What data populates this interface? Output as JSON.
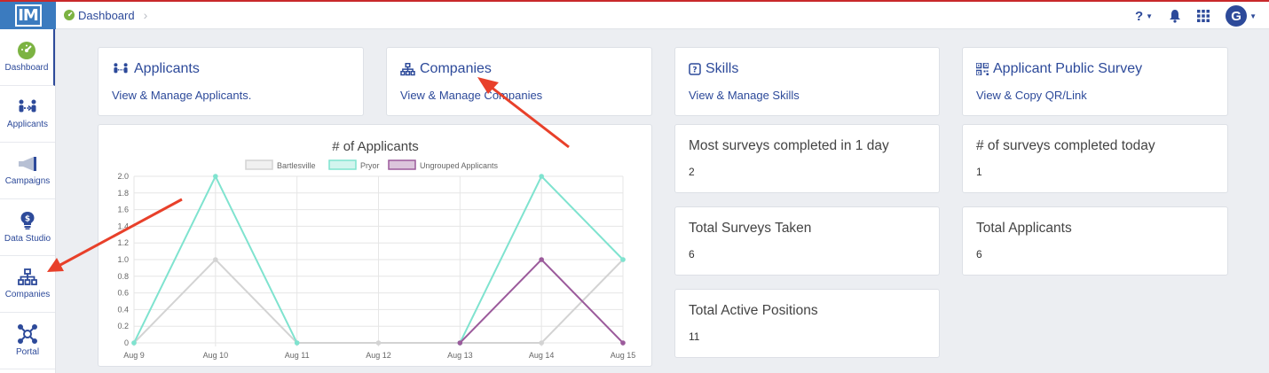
{
  "app": {
    "logo_text": "IM"
  },
  "breadcrumb": {
    "label": "Dashboard"
  },
  "topbar": {
    "help_label": "?",
    "user_initial": "G"
  },
  "sidebar": {
    "items": [
      {
        "label": "Dashboard",
        "icon": "dashboard-gauge-icon"
      },
      {
        "label": "Applicants",
        "icon": "applicants-icon"
      },
      {
        "label": "Campaigns",
        "icon": "megaphone-icon"
      },
      {
        "label": "Data Studio",
        "icon": "lightbulb-dollar-icon"
      },
      {
        "label": "Companies",
        "icon": "org-chart-icon"
      },
      {
        "label": "Portal",
        "icon": "hub-icon"
      }
    ]
  },
  "cards": {
    "applicants": {
      "title": "Applicants",
      "subtitle": "View & Manage Applicants."
    },
    "companies": {
      "title": "Companies",
      "subtitle": "View & Manage Companies"
    },
    "skills": {
      "title": "Skills",
      "subtitle": "View & Manage Skills"
    },
    "survey": {
      "title": "Applicant Public Survey",
      "subtitle": "View & Copy QR/Link"
    }
  },
  "stats": {
    "most_surveys": {
      "title": "Most surveys completed in 1 day",
      "value": "2"
    },
    "surveys_today": {
      "title": "# of surveys completed today",
      "value": "1"
    },
    "total_surveys": {
      "title": "Total Surveys Taken",
      "value": "6"
    },
    "total_applicants": {
      "title": "Total Applicants",
      "value": "6"
    },
    "active_positions": {
      "title": "Total Active Positions",
      "value": "11"
    }
  },
  "colors": {
    "accent": "#2d4a9a",
    "annotation_arrow": "#e8402a",
    "logo_bg": "#3b7bbf"
  },
  "chart_data": {
    "type": "line",
    "title": "# of Applicants",
    "categories": [
      "Aug 9",
      "Aug 10",
      "Aug 11",
      "Aug 12",
      "Aug 13",
      "Aug 14",
      "Aug 15"
    ],
    "ylim": [
      0,
      2
    ],
    "yticks": [
      "0",
      "0.2",
      "0.4",
      "0.6",
      "0.8",
      "1.0",
      "1.2",
      "1.4",
      "1.6",
      "1.8",
      "2.0"
    ],
    "grid": true,
    "legend_position": "top",
    "series": [
      {
        "name": "Bartlesville",
        "color": "#d3d3d3",
        "values": [
          0,
          1,
          0,
          0,
          0,
          0,
          1
        ]
      },
      {
        "name": "Pryor",
        "color": "#7fe3cf",
        "values": [
          0,
          2,
          0,
          null,
          0,
          2,
          1
        ]
      },
      {
        "name": "Ungrouped Applicants",
        "color": "#9b5a9b",
        "values": [
          null,
          null,
          null,
          null,
          0,
          1,
          0
        ]
      }
    ]
  }
}
